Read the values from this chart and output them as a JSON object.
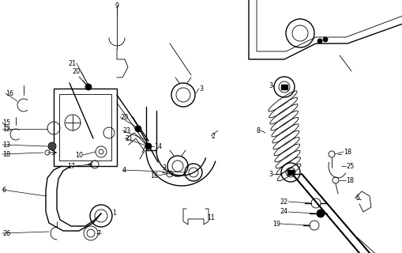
{
  "bg_color": "#ffffff",
  "fig_width": 5.1,
  "fig_height": 3.2,
  "dpi": 100,
  "line_color": "#000000",
  "label_fontsize": 5.8
}
